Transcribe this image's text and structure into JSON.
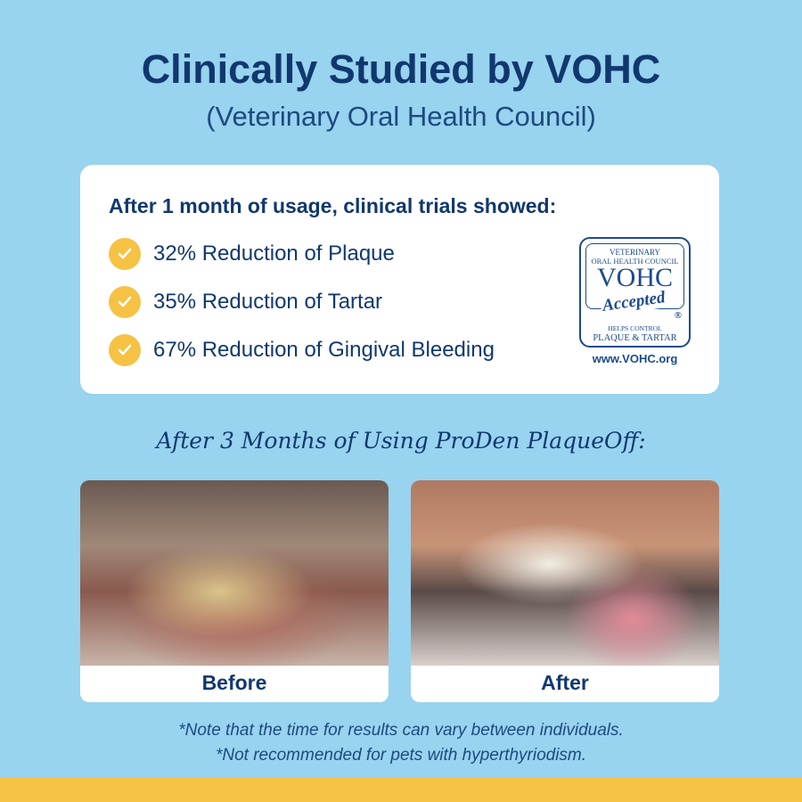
{
  "header": {
    "title": "Clinically Studied by VOHC",
    "subtitle": "(Veterinary Oral Health Council)"
  },
  "results_card": {
    "heading": "After 1 month of usage, clinical trials showed:",
    "items": [
      {
        "label": "32% Reduction of Plaque",
        "icon": "check-icon"
      },
      {
        "label": "35% Reduction of Tartar",
        "icon": "check-icon"
      },
      {
        "label": "67% Reduction of Gingival Bleeding",
        "icon": "check-icon"
      }
    ],
    "seal": {
      "line1": "VETERINARY",
      "line2": "ORAL HEALTH COUNCIL",
      "abbr": "VOHC",
      "accepted": "Accepted",
      "reg": "®",
      "line3": "HELPS CONTROL",
      "line4": "PLAQUE & TARTAR",
      "url": "www.VOHC.org"
    }
  },
  "comparison": {
    "heading": "After 3 Months of Using ProDen PlaqueOff:",
    "before_label": "Before",
    "after_label": "After"
  },
  "notes": [
    "*Note that the time for results can vary between individuals.",
    "*Not recommended for pets with hyperthyriodism."
  ],
  "colors": {
    "background": "#98d3ef",
    "navy": "#11386e",
    "accent_yellow": "#f6c244"
  }
}
